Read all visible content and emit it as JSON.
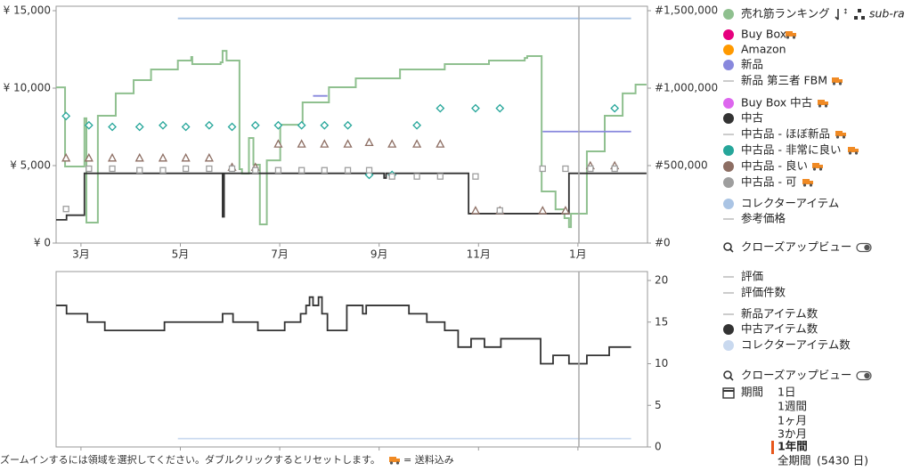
{
  "chart_data": [
    {
      "type": "line",
      "xlim": [
        2.5,
        14.4
      ],
      "xticks": [
        {
          "value": 3,
          "label": "3月"
        },
        {
          "value": 5,
          "label": "5月"
        },
        {
          "value": 7,
          "label": "7月"
        },
        {
          "value": 9,
          "label": "9月"
        },
        {
          "value": 11,
          "label": "11月"
        },
        {
          "value": 13,
          "label": "1月"
        }
      ],
      "ylim": [
        0,
        15000
      ],
      "yticks": [
        {
          "value": 0,
          "label": "¥ 0"
        },
        {
          "value": 5000,
          "label": "¥ 5,000"
        },
        {
          "value": 10000,
          "label": "¥ 10,000"
        },
        {
          "value": 15000,
          "label": "¥ 15,000"
        }
      ],
      "y2lim": [
        0,
        1500000
      ],
      "y2ticks": [
        {
          "value": 0,
          "label": "#0"
        },
        {
          "value": 500000,
          "label": "#500,000"
        },
        {
          "value": 1000000,
          "label": "#1,000,000"
        },
        {
          "value": 1500000,
          "label": "#1,500,000"
        }
      ],
      "grid": false,
      "series": [
        {
          "name": "売れ筋ランキング",
          "color": "#8fc08f",
          "axis": "y2",
          "style": "step",
          "x": [
            2.5,
            2.66,
            2.68,
            3.04,
            3.07,
            3.11,
            3.34,
            3.7,
            4.06,
            4.41,
            4.95,
            5.22,
            5.24,
            5.81,
            5.85,
            5.93,
            6.17,
            6.19,
            6.24,
            6.38,
            6.47,
            6.6,
            6.74,
            7.01,
            7.46,
            7.99,
            8.53,
            9.42,
            10.32,
            11.21,
            11.93,
            11.98,
            12.25,
            12.27,
            12.55,
            12.73,
            12.82,
            12.86,
            13.18,
            13.54,
            13.9,
            14.16,
            14.38
          ],
          "values": [
            1005000,
            1005000,
            494000,
            494000,
            805000,
            132000,
            822000,
            966000,
            1052000,
            1121000,
            1178000,
            1201000,
            1155000,
            1167000,
            1241000,
            1178000,
            1178000,
            477000,
            448000,
            678000,
            506000,
            121000,
            534000,
            764000,
            908000,
            1006000,
            1063000,
            1121000,
            1155000,
            1178000,
            1195000,
            1207000,
            1207000,
            333000,
            218000,
            161000,
            103000,
            190000,
            592000,
            822000,
            966000,
            1023000,
            1023000
          ]
        },
        {
          "name": "中古",
          "color": "#333333",
          "style": "step",
          "x": [
            2.5,
            2.71,
            3.07,
            5.85,
            5.88,
            9.1,
            9.14,
            10.8,
            12.82,
            14.38
          ],
          "values": [
            1500,
            1800,
            4500,
            1700,
            4500,
            4200,
            4500,
            1900,
            4500,
            4500
          ]
        },
        {
          "name": "中古品 - 非常に良い",
          "color": "#26a69a",
          "style": "markers",
          "marker": "diamond",
          "x": [
            2.7,
            3.16,
            3.63,
            4.18,
            4.65,
            5.11,
            5.58,
            6.04,
            6.51,
            6.97,
            7.44,
            7.9,
            8.37,
            8.8,
            9.26,
            9.76,
            10.23,
            10.94,
            11.43,
            13.74
          ],
          "values": [
            8200,
            7600,
            7500,
            7500,
            7600,
            7500,
            7600,
            7500,
            7600,
            7600,
            7600,
            7600,
            7600,
            4400,
            4400,
            7600,
            8700,
            8700,
            8700,
            8700
          ]
        },
        {
          "name": "中古品 - 良い",
          "color": "#8d6e63",
          "style": "markers",
          "marker": "triangle",
          "x": [
            2.7,
            3.16,
            3.63,
            4.18,
            4.65,
            5.11,
            5.58,
            6.04,
            6.51,
            6.97,
            7.44,
            7.9,
            8.37,
            8.8,
            9.26,
            9.76,
            10.23,
            10.94,
            11.43,
            12.29,
            12.75,
            13.25,
            13.74
          ],
          "values": [
            5500,
            5500,
            5500,
            5500,
            5500,
            5500,
            5500,
            4900,
            4900,
            6400,
            6400,
            6400,
            6400,
            6500,
            6400,
            6400,
            6400,
            2100,
            2100,
            2100,
            2100,
            5000,
            5000
          ]
        },
        {
          "name": "中古品 - 可",
          "color": "#9e9e9e",
          "style": "markers",
          "marker": "square",
          "x": [
            2.7,
            3.16,
            3.63,
            4.18,
            4.65,
            5.11,
            5.58,
            6.04,
            6.51,
            6.97,
            7.44,
            7.9,
            8.37,
            8.8,
            9.26,
            9.76,
            10.23,
            10.94,
            11.43,
            12.29,
            12.75,
            13.25,
            13.74
          ],
          "values": [
            2200,
            4800,
            4800,
            4700,
            4700,
            4800,
            4800,
            4800,
            4700,
            4700,
            4700,
            4700,
            4700,
            4700,
            4300,
            4300,
            4300,
            4300,
            2100,
            4800,
            4800,
            4800,
            4800
          ]
        },
        {
          "name": "新品",
          "color": "#8888dd",
          "style": "line",
          "x": [
            7.67,
            7.96,
            8.0,
            12.29,
            14.07
          ],
          "values": [
            9500,
            9500,
            null,
            7200,
            7200
          ]
        },
        {
          "name": "コレクターアイテム",
          "color": "#aac4e4",
          "style": "line",
          "x": [
            4.95,
            14.07
          ],
          "values": [
            14500,
            14500
          ]
        }
      ]
    },
    {
      "type": "line",
      "xlim": [
        2.5,
        14.4
      ],
      "xticks": [
        3,
        5,
        7,
        9,
        11,
        13
      ],
      "y2lim": [
        0,
        20
      ],
      "y2ticks": [
        0,
        5,
        10,
        15,
        20
      ],
      "grid": false,
      "series": [
        {
          "name": "中古アイテム数",
          "color": "#333333",
          "axis": "y2",
          "style": "step",
          "x": [
            2.5,
            2.71,
            3.13,
            3.48,
            4.68,
            5.85,
            6.06,
            6.56,
            7.1,
            7.42,
            7.53,
            7.6,
            7.67,
            7.78,
            7.85,
            7.96,
            8.35,
            8.67,
            8.74,
            9.6,
            9.96,
            10.32,
            10.59,
            10.85,
            11.12,
            11.45,
            12.25,
            12.5,
            12.82,
            13.18,
            13.63,
            14.07
          ],
          "values": [
            17,
            16,
            15,
            14,
            15,
            16,
            15,
            14,
            15,
            16,
            17,
            18,
            17,
            18,
            16,
            14,
            17,
            16,
            17,
            16,
            15,
            14,
            12,
            13,
            12,
            13,
            10,
            11,
            10,
            11,
            12,
            12
          ]
        },
        {
          "name": "コレクターアイテム数",
          "color": "#c9d9ef",
          "axis": "y2",
          "style": "line",
          "x": [
            4.95,
            14.07
          ],
          "values": [
            1,
            1
          ]
        }
      ]
    }
  ],
  "sidebar": {
    "rank_suffix": "sub-ra",
    "price_extra": [
      {
        "label": "Buy Box",
        "color": "#e6007e"
      },
      {
        "label": "Amazon",
        "color": "#ff9900"
      },
      {
        "label": "新品 第三者 FBM"
      },
      {
        "label": "Buy Box 中古",
        "color": "#dd66ee"
      },
      {
        "label": "中古品 - ほぼ新品"
      },
      {
        "label": "参考価格"
      }
    ],
    "count_extra": [
      {
        "label": "評価"
      },
      {
        "label": "評価件数"
      },
      {
        "label": "新品アイテム数"
      }
    ],
    "closeup": "クローズアップビュー",
    "period_label": "期間",
    "periods": [
      "1日",
      "1週間",
      "1ヶ月",
      "3か月",
      "1年間",
      "全期間"
    ],
    "period_selected": 4,
    "all_days": "(5430 日)"
  },
  "footer": {
    "hint": "ズームインするには領域を選択してください。ダブルクリックするとリセットします。",
    "truck_note": "= 送料込み"
  }
}
